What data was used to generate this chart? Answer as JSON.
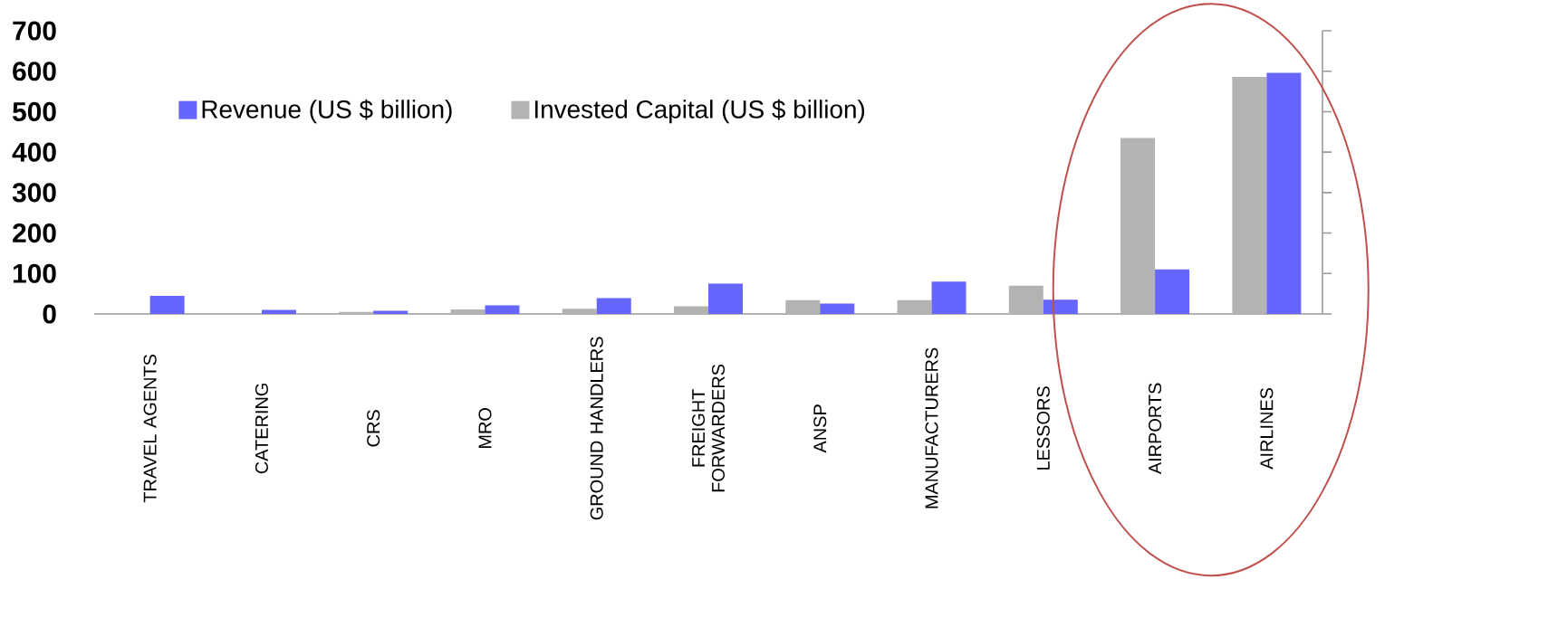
{
  "chart_data": {
    "type": "bar",
    "categories": [
      "TRAVEL AGENTS",
      "CATERING",
      "CRS",
      "MRO",
      "GROUND HANDLERS",
      "FREIGHT FORWARDERS",
      "ANSP",
      "MANUFACTURERS",
      "LESSORS",
      "AIRPORTS",
      "AIRLINES"
    ],
    "series": [
      {
        "name": "Invested Capital (US $ billion)",
        "color": "#b3b3b3",
        "values": [
          1,
          1,
          5,
          11,
          13,
          19,
          34,
          34,
          70,
          435,
          586
        ]
      },
      {
        "name": "Revenue (US $ billion)",
        "color": "#6666ff",
        "values": [
          45,
          10,
          8,
          21,
          39,
          75,
          26,
          80,
          35,
          110,
          596
        ]
      }
    ],
    "ylim": [
      0,
      700
    ],
    "yticks": [
      0,
      100,
      200,
      300,
      400,
      500,
      600,
      700
    ],
    "legend": "top",
    "grid": false
  }
}
